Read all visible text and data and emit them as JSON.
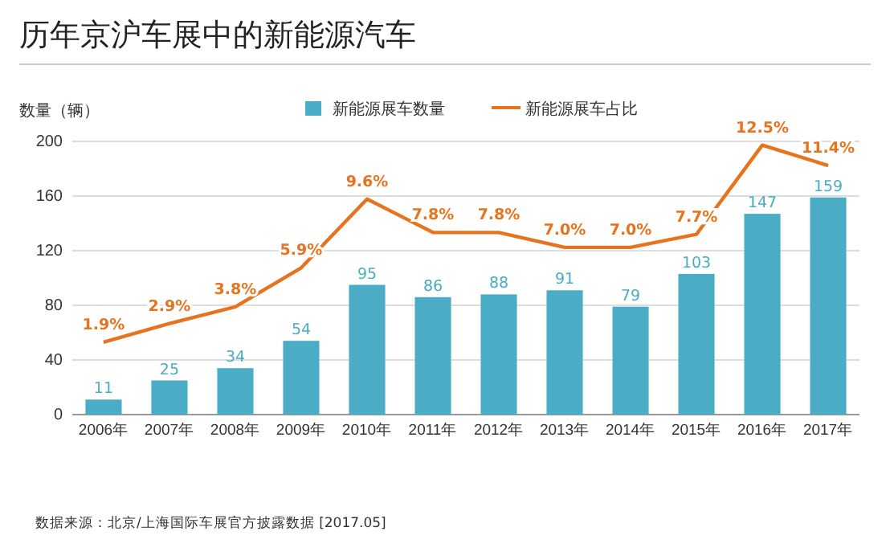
{
  "chart_data": {
    "type": "bar",
    "title": "历年京沪车展中的新能源汽车",
    "ylabel": "数量（辆）",
    "categories": [
      "2006年",
      "2007年",
      "2008年",
      "2009年",
      "2010年",
      "2011年",
      "2012年",
      "2013年",
      "2014年",
      "2015年",
      "2016年",
      "2017年"
    ],
    "series": [
      {
        "name": "新能源展车数量",
        "color": "#4bacc6",
        "values": [
          11,
          25,
          34,
          54,
          95,
          86,
          88,
          91,
          79,
          103,
          147,
          159
        ],
        "value_labels": [
          "11",
          "25",
          "34",
          "54",
          "95",
          "86",
          "88",
          "91",
          "79",
          "103",
          "147",
          "159"
        ]
      },
      {
        "name": "新能源展车占比",
        "type": "line",
        "axis": "y2",
        "color": "#e8731e",
        "values": [
          1.9,
          2.9,
          3.8,
          5.9,
          9.6,
          7.8,
          7.8,
          7.0,
          7.0,
          7.7,
          12.5,
          11.4
        ],
        "value_labels": [
          "1.9%",
          "2.9%",
          "3.8%",
          "5.9%",
          "9.6%",
          "7.8%",
          "7.8%",
          "7.0%",
          "7.0%",
          "7.7%",
          "12.5%",
          "11.4%"
        ]
      }
    ],
    "ylim": [
      0,
      200
    ],
    "yticks": [
      0,
      40,
      80,
      120,
      160,
      200
    ],
    "y2lim": [
      -2,
      12.7
    ],
    "tick_labels": "xy",
    "grid": "y",
    "legend": "top",
    "marker": "none",
    "line_style": "solid",
    "annotations": [
      "数据来源：北京/上海国际车展官方披露数据 [2017.05]"
    ]
  }
}
